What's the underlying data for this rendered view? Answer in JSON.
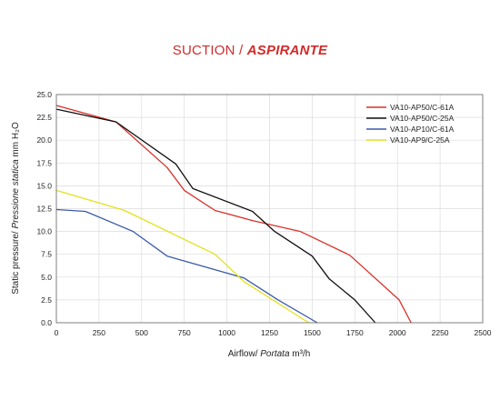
{
  "title": {
    "main": "SUCTION / ",
    "italic": "ASPIRANTE"
  },
  "chart_data": {
    "type": "line",
    "xlabel": "Airflow/ Portata m³/h",
    "xlabel_parts": [
      "Airflow/ ",
      "Portata",
      " m³/h"
    ],
    "ylabel_parts": [
      "Static pressure/ ",
      "Pressione statica",
      " mm H₂O"
    ],
    "xlim": [
      0,
      2500
    ],
    "ylim": [
      0,
      25
    ],
    "xticks": [
      0,
      250,
      500,
      750,
      1000,
      1250,
      1500,
      1750,
      2000,
      2250,
      2500
    ],
    "xtick_labels": [
      "0",
      "250",
      "500",
      "750",
      "1000",
      "1250",
      "1500",
      "1750",
      "2000",
      "2250",
      "2500"
    ],
    "yticks": [
      0,
      2.5,
      5,
      7.5,
      10,
      12.5,
      15,
      17.5,
      20,
      22.5,
      25
    ],
    "ytick_labels": [
      "0.0",
      "2.5",
      "5.0",
      "7.5",
      "10.0",
      "12.5",
      "15.0",
      "17.5",
      "20.0",
      "22.5",
      "25.0"
    ],
    "grid": true,
    "legend_position": "top-right",
    "series": [
      {
        "name": "VA10-AP50/C-61A",
        "color": "#d9302a",
        "points": [
          [
            0,
            23.8
          ],
          [
            350,
            22.0
          ],
          [
            650,
            17.0
          ],
          [
            750,
            14.5
          ],
          [
            930,
            12.3
          ],
          [
            1150,
            11.2
          ],
          [
            1430,
            10.0
          ],
          [
            1720,
            7.4
          ],
          [
            2010,
            2.5
          ],
          [
            2080,
            0
          ]
        ]
      },
      {
        "name": "VA10-AP50/C-25A",
        "color": "#111111",
        "points": [
          [
            0,
            23.4
          ],
          [
            350,
            22.0
          ],
          [
            700,
            17.4
          ],
          [
            800,
            14.7
          ],
          [
            1150,
            12.2
          ],
          [
            1280,
            10.0
          ],
          [
            1500,
            7.3
          ],
          [
            1600,
            4.8
          ],
          [
            1750,
            2.5
          ],
          [
            1870,
            0
          ]
        ]
      },
      {
        "name": "VA10-AP10/C-61A",
        "color": "#3b5ba8",
        "points": [
          [
            0,
            12.4
          ],
          [
            170,
            12.2
          ],
          [
            450,
            10.0
          ],
          [
            650,
            7.3
          ],
          [
            1100,
            4.9
          ],
          [
            1300,
            2.5
          ],
          [
            1530,
            0
          ]
        ]
      },
      {
        "name": "VA10-AP9/C-25A",
        "color": "#e2e21a",
        "points": [
          [
            0,
            14.5
          ],
          [
            400,
            12.3
          ],
          [
            930,
            7.5
          ],
          [
            1100,
            4.5
          ],
          [
            1480,
            0
          ]
        ]
      }
    ]
  }
}
